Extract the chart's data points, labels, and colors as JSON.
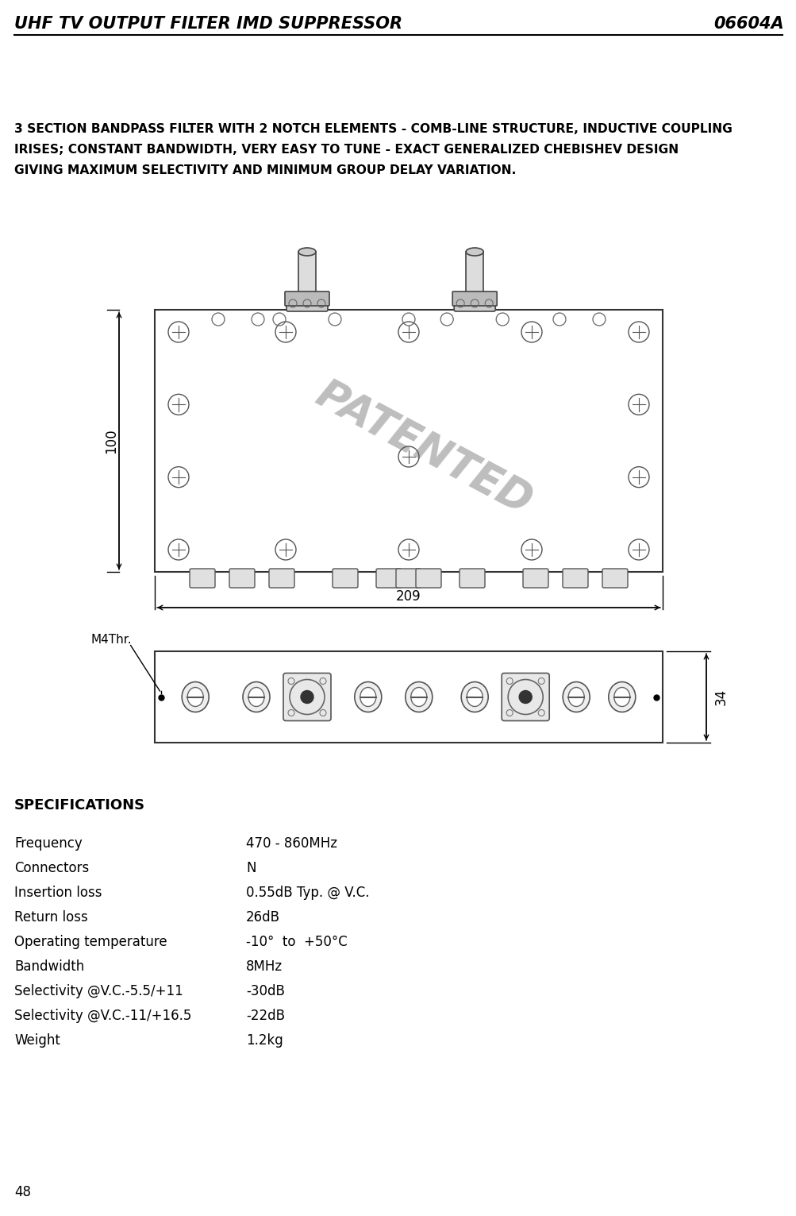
{
  "header_left": "UHF TV OUTPUT FILTER IMD SUPPRESSOR",
  "header_right": "06604A",
  "description_lines": [
    "3 SECTION BANDPASS FILTER WITH 2 NOTCH ELEMENTS - COMB-LINE STRUCTURE, INDUCTIVE COUPLING",
    "IRISES; CONSTANT BANDWIDTH, VERY EASY TO TUNE - EXACT GENERALIZED CHEBISHEV DESIGN",
    "GIVING MAXIMUM SELECTIVITY AND MINIMUM GROUP DELAY VARIATION."
  ],
  "specs_title": "SPECIFICATIONS",
  "specs": [
    [
      "Frequency",
      "470 - 860MHz"
    ],
    [
      "Connectors",
      "N"
    ],
    [
      "Insertion loss",
      "0.55dB Typ. @ V.C."
    ],
    [
      "Return loss",
      "26dB"
    ],
    [
      "Operating temperature",
      "-10°  to  +50°C"
    ],
    [
      "Bandwidth",
      "8MHz"
    ],
    [
      "Selectivity @V.C.-5.5/+11",
      "-30dB"
    ],
    [
      "Selectivity @V.C.-11/+16.5",
      "-22dB"
    ],
    [
      "Weight",
      "1.2kg"
    ]
  ],
  "page_number": "48",
  "bg_color": "#ffffff",
  "text_color": "#000000",
  "dim_209": "209",
  "dim_100": "100",
  "dim_34": "34",
  "dim_m4": "M4Thr."
}
